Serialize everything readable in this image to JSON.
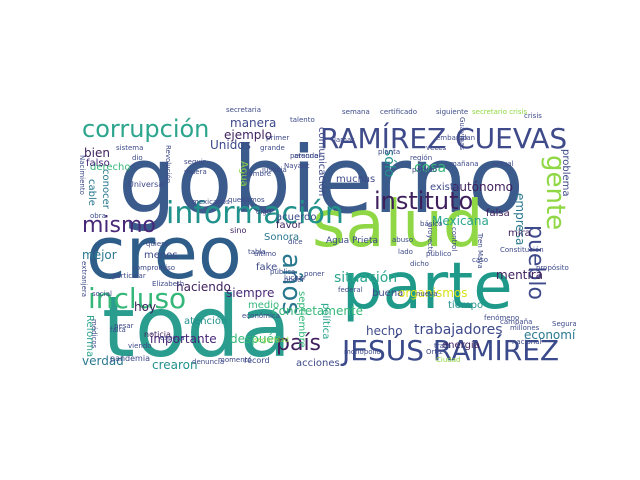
{
  "palette": {
    "navy": "#3b4a8a",
    "blue": "#3a5e8c",
    "purple": "#482878",
    "dark": "#3e1f5c",
    "teal": "#21918c",
    "green": "#35b779",
    "lime": "#8fd744",
    "yellow": "#d8e219",
    "cyan": "#2ca58d"
  },
  "words": [
    {
      "text": "gobierno",
      "color": "#3b5b8c"
    },
    {
      "text": "salud",
      "color": "#8fd744"
    },
    {
      "text": "parte",
      "color": "#1f9a8a"
    },
    {
      "text": "toda",
      "color": "#2a9d8f"
    },
    {
      "text": "creo",
      "color": "#2e5d8a"
    },
    {
      "text": "información",
      "color": "#21918c"
    },
    {
      "text": "RAMÍREZ CUEVAS",
      "color": "#3e4a89"
    },
    {
      "text": "corrupción",
      "color": "#2ca58d"
    },
    {
      "text": "instituto",
      "color": "#3e1f5c"
    },
    {
      "text": "mismo",
      "color": "#482878"
    },
    {
      "text": "incluso",
      "color": "#35b779"
    },
    {
      "text": "JESÚS RAMÍREZ",
      "color": "#3b4a8a"
    },
    {
      "text": "gente",
      "color": "#8fd744"
    },
    {
      "text": "pueblo",
      "color": "#3e4a89"
    },
    {
      "text": "años",
      "color": "#2a788e"
    },
    {
      "text": "país",
      "color": "#3e1f5c"
    },
    {
      "text": "trabajadores",
      "color": "#3e4a89"
    },
    {
      "text": "cosa",
      "color": "#35b779"
    },
    {
      "text": "sólo",
      "color": "#21918c"
    },
    {
      "text": "situación",
      "color": "#2ca58d"
    },
    {
      "text": "organismos",
      "color": "#d8e219"
    },
    {
      "text": "mentira",
      "color": "#3e1f5c"
    },
    {
      "text": "economía",
      "color": "#2a788e"
    },
    {
      "text": "hecho",
      "color": "#3e4a89"
    },
    {
      "text": "concretamente",
      "color": "#35b779"
    },
    {
      "text": "haciendo",
      "color": "#3e1f5c"
    },
    {
      "text": "importante",
      "color": "#482878"
    },
    {
      "text": "verdad",
      "color": "#2a788e"
    },
    {
      "text": "mejor",
      "color": "#2a788e"
    },
    {
      "text": "siempre",
      "color": "#482878"
    },
    {
      "text": "después",
      "color": "#35b779"
    },
    {
      "text": "hoy",
      "color": "#3e1f5c"
    },
    {
      "text": "menos",
      "color": "#3e4a89"
    },
    {
      "text": "atención",
      "color": "#21918c"
    },
    {
      "text": "medio",
      "color": "#35b779"
    },
    {
      "text": "fake",
      "color": "#3e4a89"
    },
    {
      "text": "Sonora",
      "color": "#2a788e"
    },
    {
      "text": "favor",
      "color": "#3e1f5c"
    },
    {
      "text": "acuerdo",
      "color": "#3e4a89"
    },
    {
      "text": "Agua Prieta",
      "color": "#3e4a89"
    },
    {
      "text": "Mexicana",
      "color": "#2ca58d"
    },
    {
      "text": "falsa",
      "color": "#3e1f5c"
    },
    {
      "text": "autónomo",
      "color": "#3e1f5c"
    },
    {
      "text": "empresa",
      "color": "#2a788e"
    },
    {
      "text": "mira",
      "color": "#3e1f5c"
    },
    {
      "text": "existe",
      "color": "#3e4a89"
    },
    {
      "text": "buena",
      "color": "#3e4a89"
    },
    {
      "text": "tiempo",
      "color": "#21918c"
    },
    {
      "text": "energía",
      "color": "#3e1f5c"
    },
    {
      "text": "ejemplo",
      "color": "#3e1f5c"
    },
    {
      "text": "manera",
      "color": "#3e4a89"
    },
    {
      "text": "bien",
      "color": "#3e1f5c"
    },
    {
      "text": "derecho",
      "color": "#35b779"
    },
    {
      "text": "conocer",
      "color": "#2a788e"
    },
    {
      "text": "falso",
      "color": "#482878"
    },
    {
      "text": "cable",
      "color": "#2a788e"
    },
    {
      "text": "Unidos",
      "color": "#3e4a89"
    },
    {
      "text": "Agua",
      "color": "#8fd744"
    },
    {
      "text": "comunicación",
      "color": "#3e4a89"
    },
    {
      "text": "muchas",
      "color": "#3e4a89"
    },
    {
      "text": "problema",
      "color": "#3e4a89"
    },
    {
      "text": "crearon",
      "color": "#21918c"
    },
    {
      "text": "acciones",
      "color": "#3e4a89"
    },
    {
      "text": "septiembre",
      "color": "#35b779"
    },
    {
      "text": "política",
      "color": "#2ca58d"
    },
    {
      "text": "Reforma",
      "color": "#2ca58d"
    },
    {
      "text": "pandemia",
      "color": "#3e4a89"
    },
    {
      "text": "Universal",
      "color": "#3e4a89"
    },
    {
      "text": "noticia",
      "color": "#3e1f5c"
    },
    {
      "text": "quiero",
      "color": "#3e4a89"
    },
    {
      "text": "sino",
      "color": "#3e1f5c"
    },
    {
      "text": "dice",
      "color": "#3e4a89"
    },
    {
      "text": "federal",
      "color": "#3e4a89"
    },
    {
      "text": "récord",
      "color": "#3e4a89"
    },
    {
      "text": "momento",
      "color": "#3e4a89"
    },
    {
      "text": "monopolio",
      "color": "#3e4a89"
    },
    {
      "text": "persona",
      "color": "#3e4a89"
    },
    {
      "text": "dio",
      "color": "#3e4a89"
    },
    {
      "text": "campaña",
      "color": "#3e4a89"
    },
    {
      "text": "Nayarit",
      "color": "#3e4a89"
    },
    {
      "text": "semana",
      "color": "#3e4a89"
    },
    {
      "text": "certificado",
      "color": "#3e4a89"
    },
    {
      "text": "secretario crisis",
      "color": "#8fd744"
    },
    {
      "text": "secretaria",
      "color": "#3e4a89"
    },
    {
      "text": "veces",
      "color": "#3e4a89"
    },
    {
      "text": "región",
      "color": "#3e4a89"
    },
    {
      "text": "partido",
      "color": "#3e4a89"
    },
    {
      "text": "nueva",
      "color": "#3e4a89"
    },
    {
      "text": "social",
      "color": "#3e4a89"
    },
    {
      "text": "Elizabeth",
      "color": "#3e4a89"
    },
    {
      "text": "mexicanos",
      "color": "#3e4a89"
    },
    {
      "text": "económica",
      "color": "#3e4a89"
    },
    {
      "text": "seguridad",
      "color": "#8fd744"
    },
    {
      "text": "esposa",
      "color": "#3e4a89"
    },
    {
      "text": "viendo",
      "color": "#3e4a89"
    },
    {
      "text": "falta",
      "color": "#3e4a89"
    },
    {
      "text": "denuncia",
      "color": "#3e4a89"
    },
    {
      "text": "planta",
      "color": "#3e4a89"
    },
    {
      "text": "Tren Maya",
      "color": "#3e4a89"
    },
    {
      "text": "Constitución",
      "color": "#3e4a89"
    },
    {
      "text": "millones",
      "color": "#3e4a89"
    },
    {
      "text": "Segura",
      "color": "#3e4a89"
    },
    {
      "text": "nacional",
      "color": "#3e4a89"
    },
    {
      "text": "fenómeno",
      "color": "#3e4a89"
    },
    {
      "text": "Ciudad",
      "color": "#8fd744"
    },
    {
      "text": "básico",
      "color": "#3e4a89"
    },
    {
      "text": "público",
      "color": "#3e4a89"
    },
    {
      "text": "lado",
      "color": "#3e4a89"
    },
    {
      "text": "abuso",
      "color": "#3e4a89"
    },
    {
      "text": "proyecto",
      "color": "#3e4a89"
    },
    {
      "text": "control",
      "color": "#3e4a89"
    },
    {
      "text": "grande",
      "color": "#3e4a89"
    },
    {
      "text": "primer",
      "color": "#3e4a89"
    },
    {
      "text": "talento",
      "color": "#3e4a89"
    },
    {
      "text": "seguir",
      "color": "#3e4a89"
    },
    {
      "text": "muera",
      "color": "#3e4a89"
    },
    {
      "text": "quedamos",
      "color": "#3e4a89"
    },
    {
      "text": "digo",
      "color": "#3e4a89"
    },
    {
      "text": "obra",
      "color": "#3e4a89"
    },
    {
      "text": "último",
      "color": "#3e4a89"
    },
    {
      "text": "compromiso",
      "color": "#3e4a89"
    },
    {
      "text": "particular",
      "color": "#3e4a89"
    },
    {
      "text": "médicos",
      "color": "#3e4a89"
    },
    {
      "text": "extranjera",
      "color": "#3e4a89"
    },
    {
      "text": "pesar",
      "color": "#3e4a89"
    },
    {
      "text": "poder",
      "color": "#3e4a89"
    },
    {
      "text": "poner",
      "color": "#3e4a89"
    },
    {
      "text": "luchar",
      "color": "#3e4a89"
    },
    {
      "text": "embargo",
      "color": "#3e4a89"
    },
    {
      "text": "plan",
      "color": "#3e4a89"
    },
    {
      "text": "propósito",
      "color": "#3e4a89"
    },
    {
      "text": "siguiente",
      "color": "#3e4a89"
    },
    {
      "text": "atender",
      "color": "#3e4a89"
    },
    {
      "text": "justicia",
      "color": "#3e4a89"
    },
    {
      "text": "nombre",
      "color": "#3e4a89"
    },
    {
      "text": "Revolución",
      "color": "#3e4a89"
    },
    {
      "text": "Nacimiento",
      "color": "#3e4a89"
    },
    {
      "text": "sistema",
      "color": "#3e4a89"
    },
    {
      "text": "Guaymas",
      "color": "#3e4a89"
    },
    {
      "text": "mañana",
      "color": "#3e4a89"
    },
    {
      "text": "trata",
      "color": "#3e4a89"
    },
    {
      "text": "crisis",
      "color": "#3e4a89"
    },
    {
      "text": "tabla",
      "color": "#3e4a89"
    },
    {
      "text": "Ortiz",
      "color": "#3e4a89"
    },
    {
      "text": "caso",
      "color": "#3e4a89"
    },
    {
      "text": "llamar",
      "color": "#3e4a89"
    },
    {
      "text": "actual",
      "color": "#3e4a89"
    },
    {
      "text": "pública",
      "color": "#3e4a89"
    },
    {
      "text": "dicho",
      "color": "#3e4a89"
    }
  ]
}
